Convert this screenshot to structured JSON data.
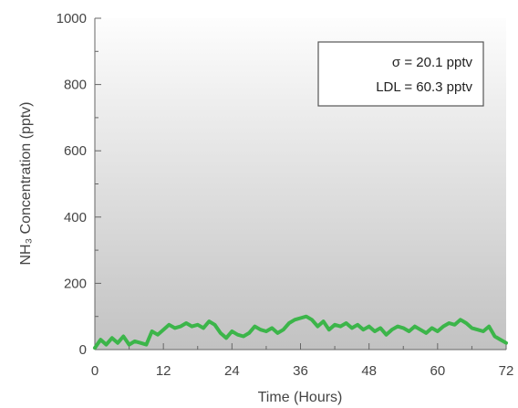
{
  "chart_data": {
    "type": "line",
    "xlabel": "Time (Hours)",
    "ylabel": "NH₃ Concentration (pptv)",
    "xlim": [
      0,
      72
    ],
    "ylim": [
      0,
      1000
    ],
    "x_ticks": [
      0,
      12,
      24,
      36,
      48,
      60,
      72
    ],
    "x_tick_labels": [
      "0",
      "12",
      "24",
      "36",
      "48",
      "60",
      "72"
    ],
    "y_ticks": [
      0,
      200,
      400,
      600,
      800,
      1000
    ],
    "y_tick_labels": [
      "0",
      "200",
      "400",
      "600",
      "800",
      "1000"
    ],
    "grid": false,
    "legend_position": "top-right",
    "annotations": [
      "σ = 20.1 pptv",
      "LDL = 60.3 pptv"
    ],
    "series": [
      {
        "color": "#3cb54a",
        "x": [
          0,
          1,
          2,
          3,
          4,
          5,
          6,
          7,
          8,
          9,
          10,
          11,
          12,
          13,
          14,
          15,
          16,
          17,
          18,
          19,
          20,
          21,
          22,
          23,
          24,
          25,
          26,
          27,
          28,
          29,
          30,
          31,
          32,
          33,
          34,
          35,
          36,
          37,
          38,
          39,
          40,
          41,
          42,
          43,
          44,
          45,
          46,
          47,
          48,
          49,
          50,
          51,
          52,
          53,
          54,
          55,
          56,
          57,
          58,
          59,
          60,
          61,
          62,
          63,
          64,
          65,
          66,
          67,
          68,
          69,
          70,
          71,
          72
        ],
        "y": [
          5,
          30,
          15,
          35,
          20,
          40,
          15,
          25,
          20,
          15,
          55,
          45,
          60,
          75,
          65,
          70,
          80,
          70,
          75,
          65,
          85,
          75,
          50,
          35,
          55,
          45,
          40,
          50,
          70,
          60,
          55,
          65,
          50,
          60,
          80,
          90,
          95,
          100,
          90,
          70,
          85,
          60,
          75,
          70,
          80,
          65,
          75,
          60,
          70,
          55,
          65,
          45,
          60,
          70,
          65,
          55,
          70,
          60,
          50,
          65,
          55,
          70,
          80,
          75,
          90,
          80,
          65,
          60,
          55,
          70,
          40,
          30,
          20
        ]
      }
    ]
  }
}
